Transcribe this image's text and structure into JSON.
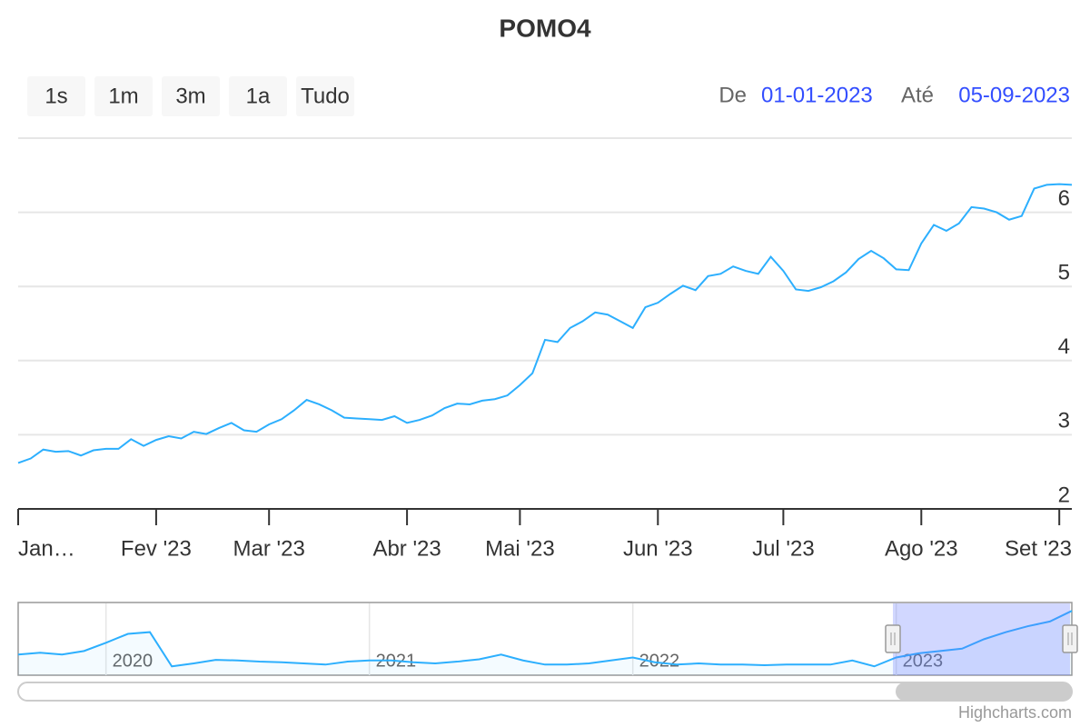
{
  "range_selector": {
    "buttons": [
      "1s",
      "1m",
      "3m",
      "1a",
      "Tudo"
    ],
    "from_label": "De",
    "from": "01-01-2023",
    "to_label": "Até",
    "to": "05-09-2023"
  },
  "credits": "Highcharts.com",
  "chart_data": [
    {
      "type": "line",
      "title": "POMO4",
      "color": "#2caffe",
      "categories": [
        "Jan…",
        null,
        null,
        null,
        null,
        null,
        null,
        null,
        null,
        null,
        null,
        "Fev '23",
        null,
        null,
        null,
        null,
        null,
        null,
        null,
        null,
        "Mar '23",
        null,
        null,
        null,
        null,
        null,
        null,
        null,
        null,
        null,
        null,
        "Abr '23",
        null,
        null,
        null,
        null,
        null,
        null,
        null,
        null,
        "Mai '23",
        null,
        null,
        null,
        null,
        null,
        null,
        null,
        null,
        null,
        null,
        "Jun '23",
        null,
        null,
        null,
        null,
        null,
        null,
        null,
        null,
        null,
        "Jul '23",
        null,
        null,
        null,
        null,
        null,
        null,
        null,
        null,
        null,
        null,
        "Ago '23",
        null,
        null,
        null,
        null,
        null,
        null,
        null,
        null,
        null,
        null,
        "Set '23",
        null
      ],
      "values": [
        2.62,
        2.68,
        2.8,
        2.77,
        2.78,
        2.72,
        2.79,
        2.81,
        2.81,
        2.94,
        2.85,
        2.93,
        2.98,
        2.95,
        3.04,
        3.01,
        3.09,
        3.16,
        3.06,
        3.04,
        3.14,
        3.21,
        3.33,
        3.47,
        3.41,
        3.33,
        3.23,
        3.22,
        3.21,
        3.2,
        3.25,
        3.16,
        3.2,
        3.26,
        3.36,
        3.42,
        3.41,
        3.46,
        3.48,
        3.53,
        3.67,
        3.83,
        4.28,
        4.25,
        4.44,
        4.53,
        4.65,
        4.62,
        4.53,
        4.44,
        4.72,
        4.78,
        4.9,
        5.01,
        4.95,
        5.14,
        5.17,
        5.27,
        5.21,
        5.17,
        5.4,
        5.21,
        4.96,
        4.94,
        4.99,
        5.07,
        5.19,
        5.37,
        5.48,
        5.38,
        5.23,
        5.22,
        5.58,
        5.83,
        5.75,
        5.85,
        6.07,
        6.05,
        6.0,
        5.9,
        5.95,
        6.32,
        6.37,
        6.38,
        6.37
      ],
      "ylim": [
        2,
        7
      ],
      "yticks": [
        2,
        3,
        4,
        5,
        6
      ],
      "grid": true
    },
    {
      "type": "area",
      "color": "#2caffe",
      "categories": [
        null,
        null,
        null,
        null,
        "2020",
        null,
        null,
        null,
        null,
        null,
        null,
        null,
        null,
        null,
        null,
        null,
        "2021",
        null,
        null,
        null,
        null,
        null,
        null,
        null,
        null,
        null,
        null,
        null,
        "2022",
        null,
        null,
        null,
        null,
        null,
        null,
        null,
        null,
        null,
        null,
        null,
        "2023",
        null,
        null,
        null,
        null,
        null,
        null,
        null,
        null
      ],
      "values": [
        2.6,
        2.75,
        2.6,
        2.9,
        3.6,
        4.35,
        4.5,
        1.6,
        1.85,
        2.15,
        2.1,
        2.0,
        1.95,
        1.85,
        1.75,
        2.0,
        2.1,
        2.1,
        1.95,
        1.85,
        2.0,
        2.2,
        2.6,
        2.1,
        1.75,
        1.75,
        1.85,
        2.1,
        2.35,
        1.95,
        1.75,
        1.85,
        1.75,
        1.75,
        1.7,
        1.75,
        1.75,
        1.75,
        2.1,
        1.6,
        2.35,
        2.7,
        2.9,
        3.1,
        3.9,
        4.5,
        5.0,
        5.4,
        6.3
      ],
      "ylim": [
        0.85,
        6.93
      ]
    }
  ]
}
